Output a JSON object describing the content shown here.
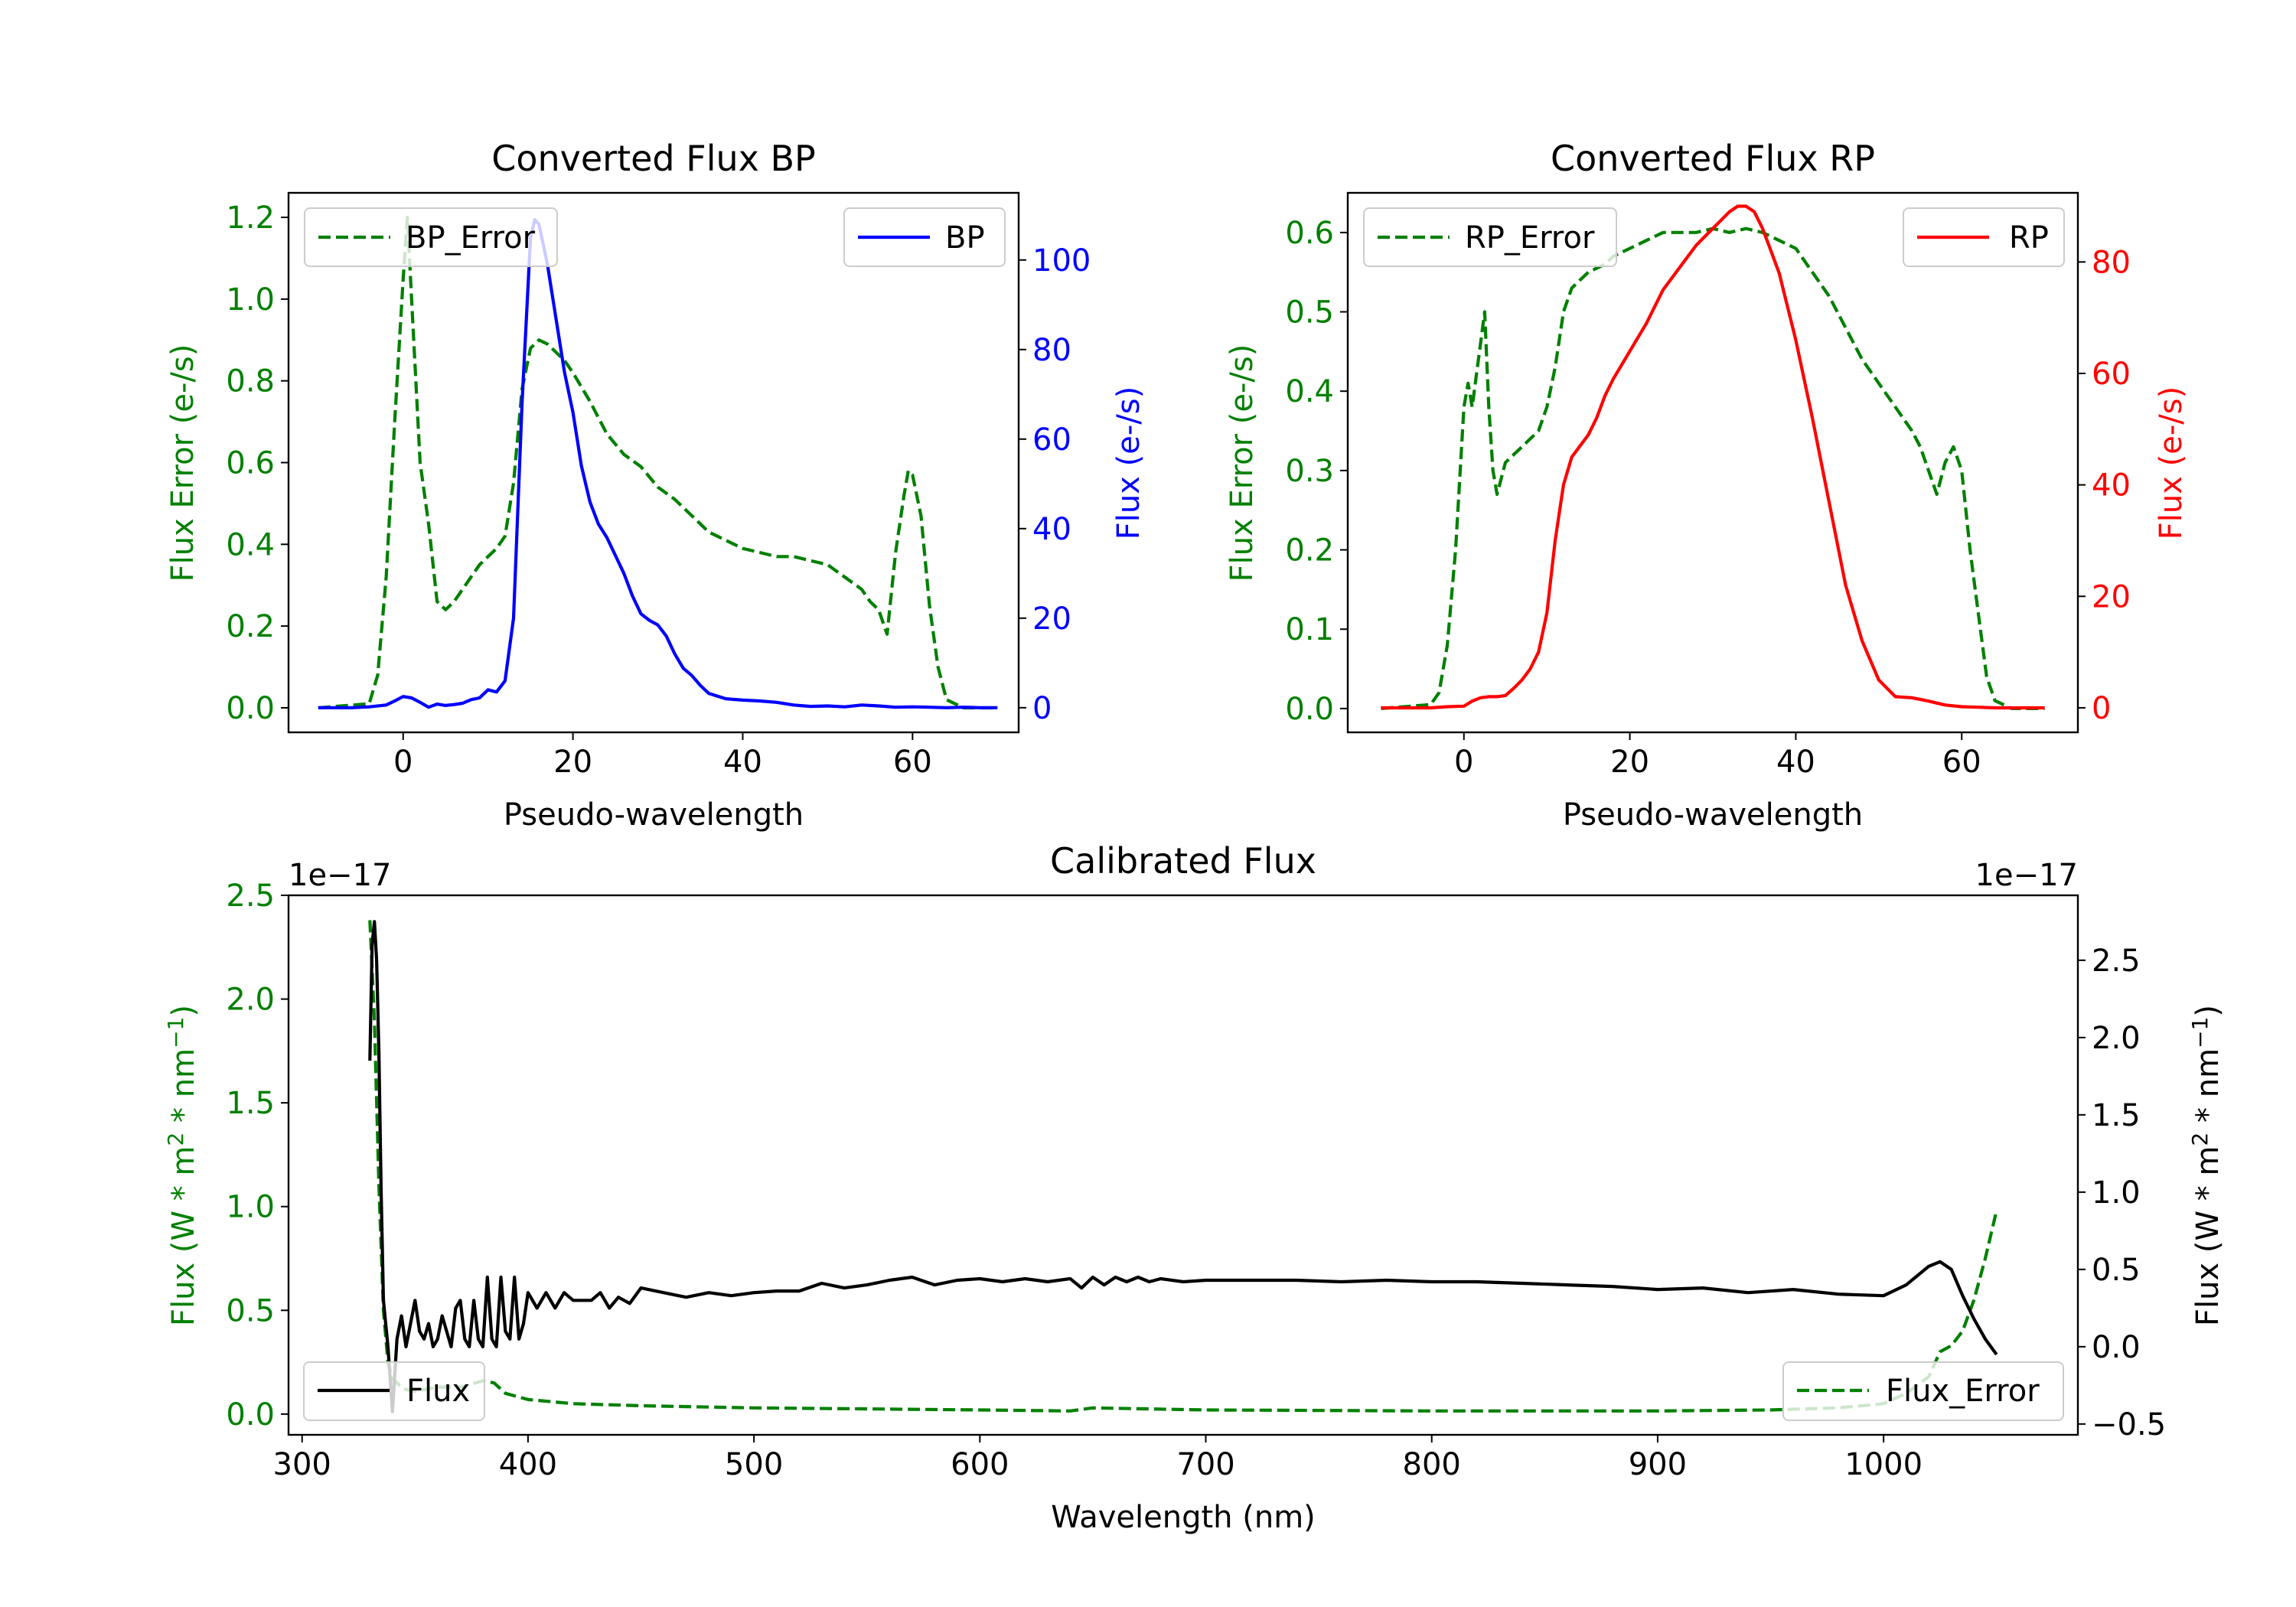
{
  "chart_data": [
    {
      "type": "line",
      "title": "Converted Flux BP",
      "xlabel": "Pseudo-wavelength",
      "xlim": [
        -13.5,
        72.5
      ],
      "xticks": [
        0,
        20,
        40,
        60
      ],
      "left_axis": {
        "label": "Flux Error (e-/s)",
        "color": "#008000",
        "ylim": [
          -0.06,
          1.26
        ],
        "ticks": [
          0.0,
          0.2,
          0.4,
          0.6,
          0.8,
          1.0,
          1.2
        ],
        "tick_labels": [
          "0.0",
          "0.2",
          "0.4",
          "0.6",
          "0.8",
          "1.0",
          "1.2"
        ]
      },
      "right_axis": {
        "label": "Flux (e-/s)",
        "color": "#0000ff",
        "ylim": [
          -5.5,
          115
        ],
        "ticks": [
          0,
          20,
          40,
          60,
          80,
          100
        ],
        "tick_labels": [
          "0",
          "20",
          "40",
          "60",
          "80",
          "100"
        ]
      },
      "legend_left": {
        "label": "BP_Error",
        "position": "upper left"
      },
      "legend_right": {
        "label": "BP",
        "position": "upper right"
      },
      "series": [
        {
          "name": "BP_Error",
          "axis": "left",
          "color": "#008000",
          "dashed": true,
          "x": [
            -10,
            -4,
            -3,
            -2,
            -1,
            0,
            0.5,
            1,
            2,
            3,
            4,
            5,
            6,
            7,
            8,
            9,
            10,
            11,
            12,
            13,
            14,
            15,
            16,
            17,
            18,
            19,
            20,
            22,
            24,
            26,
            28,
            30,
            32,
            34,
            36,
            38,
            40,
            42,
            44,
            46,
            48,
            50,
            52,
            54,
            55,
            56,
            57,
            58,
            59,
            59.5,
            60,
            61,
            62,
            63,
            64,
            66,
            68,
            70
          ],
          "y": [
            0,
            0.01,
            0.08,
            0.32,
            0.7,
            1.05,
            1.2,
            1.0,
            0.6,
            0.45,
            0.26,
            0.24,
            0.26,
            0.29,
            0.32,
            0.35,
            0.37,
            0.39,
            0.42,
            0.55,
            0.78,
            0.88,
            0.9,
            0.89,
            0.87,
            0.85,
            0.82,
            0.75,
            0.67,
            0.62,
            0.59,
            0.54,
            0.51,
            0.47,
            0.43,
            0.41,
            0.39,
            0.38,
            0.37,
            0.37,
            0.36,
            0.35,
            0.32,
            0.29,
            0.26,
            0.24,
            0.18,
            0.38,
            0.52,
            0.58,
            0.57,
            0.47,
            0.25,
            0.1,
            0.02,
            0,
            0,
            0
          ]
        },
        {
          "name": "BP",
          "axis": "right",
          "color": "#0000ff",
          "dashed": false,
          "x": [
            -10,
            -6,
            -4,
            -2,
            -1,
            0,
            1,
            2,
            3,
            4,
            5,
            6,
            7,
            8,
            9,
            10,
            11,
            12,
            13,
            14,
            15,
            15.5,
            16,
            17,
            18,
            19,
            20,
            21,
            22,
            23,
            24,
            25,
            26,
            27,
            28,
            29,
            30,
            31,
            32,
            33,
            34,
            35,
            36,
            37,
            38,
            40,
            42,
            44,
            46,
            48,
            50,
            52,
            54,
            56,
            58,
            60,
            62,
            64,
            66,
            68,
            70
          ],
          "y": [
            0,
            0,
            0.2,
            0.6,
            1.5,
            2.5,
            2.2,
            1.2,
            0.1,
            0.8,
            0.5,
            0.7,
            1,
            1.8,
            2.2,
            4,
            3.5,
            6,
            20,
            68,
            105,
            109,
            108,
            99,
            87,
            75,
            66,
            54,
            46,
            41,
            38,
            34,
            30,
            25,
            21,
            19.5,
            18.5,
            16,
            12,
            8.8,
            7.2,
            5,
            3.2,
            2.6,
            2,
            1.7,
            1.5,
            1.2,
            0.6,
            0.3,
            0.4,
            0.2,
            0.6,
            0.4,
            0.1,
            0.2,
            0.1,
            0,
            0.1,
            0,
            0
          ]
        }
      ]
    },
    {
      "type": "line",
      "title": "Converted Flux RP",
      "xlabel": "Pseudo-wavelength",
      "xlim": [
        -14,
        74
      ],
      "xticks": [
        0,
        20,
        40,
        60
      ],
      "left_axis": {
        "label": "Flux Error (e-/s)",
        "color": "#008000",
        "ylim": [
          -0.03,
          0.65
        ],
        "ticks": [
          0.0,
          0.1,
          0.2,
          0.3,
          0.4,
          0.5,
          0.6
        ],
        "tick_labels": [
          "0.0",
          "0.1",
          "0.2",
          "0.3",
          "0.4",
          "0.5",
          "0.6"
        ]
      },
      "right_axis": {
        "label": "Flux (e-/s)",
        "color": "#ff0000",
        "ylim": [
          -4.4,
          92.4
        ],
        "ticks": [
          0,
          20,
          40,
          60,
          80
        ],
        "tick_labels": [
          "0",
          "20",
          "40",
          "60",
          "80"
        ]
      },
      "legend_left": {
        "label": "RP_Error",
        "position": "upper left"
      },
      "legend_right": {
        "label": "RP",
        "position": "upper right"
      },
      "series": [
        {
          "name": "RP_Error",
          "axis": "left",
          "color": "#008000",
          "dashed": true,
          "x": [
            -10,
            -4,
            -3,
            -2,
            -1,
            0,
            0.5,
            1,
            1.5,
            2,
            2.5,
            3,
            3.5,
            4,
            5,
            6,
            7,
            8,
            9,
            10,
            11,
            12,
            13,
            14,
            15,
            16,
            17,
            18,
            19,
            20,
            22,
            24,
            26,
            28,
            30,
            32,
            34,
            36,
            38,
            40,
            42,
            44,
            46,
            48,
            50,
            52,
            54,
            55,
            56,
            57,
            58,
            59,
            60,
            61,
            62,
            63,
            64,
            66,
            70
          ],
          "y": [
            0,
            0.005,
            0.02,
            0.08,
            0.2,
            0.38,
            0.41,
            0.38,
            0.42,
            0.46,
            0.5,
            0.38,
            0.3,
            0.27,
            0.31,
            0.32,
            0.33,
            0.34,
            0.35,
            0.38,
            0.43,
            0.5,
            0.53,
            0.54,
            0.55,
            0.555,
            0.56,
            0.57,
            0.575,
            0.58,
            0.59,
            0.6,
            0.6,
            0.6,
            0.605,
            0.6,
            0.605,
            0.6,
            0.59,
            0.58,
            0.55,
            0.52,
            0.48,
            0.44,
            0.41,
            0.38,
            0.35,
            0.33,
            0.3,
            0.27,
            0.31,
            0.33,
            0.3,
            0.2,
            0.12,
            0.04,
            0.01,
            0,
            0
          ]
        },
        {
          "name": "RP",
          "axis": "right",
          "color": "#ff0000",
          "dashed": false,
          "x": [
            -10,
            -4,
            -2,
            0,
            1,
            2,
            3,
            4,
            5,
            6,
            7,
            8,
            9,
            10,
            11,
            12,
            13,
            14,
            15,
            16,
            17,
            18,
            20,
            22,
            24,
            26,
            28,
            30,
            32,
            33,
            34,
            35,
            36,
            37,
            38,
            40,
            42,
            44,
            46,
            48,
            50,
            52,
            54,
            56,
            58,
            60,
            62,
            64,
            66,
            70
          ],
          "y": [
            0,
            0,
            0.2,
            0.3,
            1.2,
            1.8,
            2,
            2,
            2.2,
            3.5,
            5,
            7,
            10,
            17,
            30,
            40,
            45,
            47,
            49,
            52,
            56,
            59,
            64,
            69,
            75,
            79,
            83,
            86,
            89,
            90,
            90,
            89,
            86,
            82,
            78,
            66,
            52,
            37,
            22,
            12,
            5,
            2,
            1.8,
            1.2,
            0.5,
            0.2,
            0.1,
            0,
            0,
            0
          ]
        }
      ]
    },
    {
      "type": "line",
      "title": "Calibrated Flux",
      "xlabel": "Wavelength (nm)",
      "xlim": [
        294,
        1086
      ],
      "xticks": [
        300,
        400,
        500,
        600,
        700,
        800,
        900,
        1000
      ],
      "left_axis": {
        "label": "Flux (W * m² * nm⁻¹)",
        "color": "#008000",
        "ylim": [
          -0.1,
          2.5
        ],
        "ticks": [
          0.0,
          0.5,
          1.0,
          1.5,
          2.0,
          2.5
        ],
        "tick_labels": [
          "0.0",
          "0.5",
          "1.0",
          "1.5",
          "2.0",
          "2.5"
        ],
        "offset_text": "1e−17"
      },
      "right_axis": {
        "label": "Flux (W * m² * nm⁻¹)",
        "color": "#000000",
        "ylim": [
          -0.57,
          2.92
        ],
        "ticks": [
          -0.5,
          0.0,
          0.5,
          1.0,
          1.5,
          2.0,
          2.5
        ],
        "tick_labels": [
          "−0.5",
          "0.0",
          "0.5",
          "1.0",
          "1.5",
          "2.0",
          "2.5"
        ],
        "offset_text": "1e−17"
      },
      "legend_left": {
        "label": "Flux",
        "position": "lower left"
      },
      "legend_right": {
        "label": "Flux_Error",
        "position": "lower right"
      },
      "series": [
        {
          "name": "Flux_Error",
          "axis": "left",
          "color": "#008000",
          "dashed": true,
          "x": [
            330,
            332,
            334,
            336,
            338,
            340,
            345,
            350,
            360,
            370,
            380,
            385,
            390,
            400,
            420,
            450,
            500,
            550,
            600,
            640,
            650,
            700,
            800,
            900,
            950,
            980,
            1000,
            1010,
            1020,
            1025,
            1030,
            1035,
            1040,
            1045,
            1050
          ],
          "y": [
            2.38,
            1.9,
            1.1,
            0.5,
            0.25,
            0.17,
            0.12,
            0.11,
            0.13,
            0.13,
            0.16,
            0.15,
            0.1,
            0.07,
            0.05,
            0.04,
            0.03,
            0.025,
            0.02,
            0.015,
            0.03,
            0.02,
            0.015,
            0.015,
            0.02,
            0.03,
            0.05,
            0.1,
            0.18,
            0.3,
            0.33,
            0.4,
            0.55,
            0.75,
            0.98
          ]
        },
        {
          "name": "Flux",
          "axis": "right",
          "color": "#000000",
          "dashed": false,
          "x": [
            330,
            331,
            332,
            333,
            334,
            335,
            336,
            338,
            340,
            342,
            344,
            346,
            348,
            350,
            352,
            354,
            356,
            358,
            360,
            362,
            364,
            366,
            368,
            370,
            372,
            374,
            376,
            378,
            380,
            382,
            384,
            386,
            388,
            390,
            392,
            394,
            396,
            398,
            400,
            404,
            408,
            412,
            416,
            420,
            424,
            428,
            432,
            436,
            440,
            445,
            450,
            460,
            470,
            480,
            490,
            500,
            510,
            520,
            530,
            540,
            550,
            560,
            570,
            580,
            590,
            600,
            610,
            620,
            630,
            640,
            645,
            650,
            655,
            660,
            665,
            670,
            675,
            680,
            690,
            700,
            720,
            740,
            760,
            780,
            800,
            820,
            840,
            860,
            880,
            900,
            920,
            940,
            960,
            980,
            1000,
            1010,
            1020,
            1025,
            1030,
            1035,
            1040,
            1045,
            1050
          ],
          "y": [
            1.85,
            2.6,
            2.75,
            2.5,
            1.9,
            1.0,
            0.3,
            0.0,
            -0.42,
            0.05,
            0.2,
            0.0,
            0.15,
            0.3,
            0.1,
            0.05,
            0.15,
            0.0,
            0.05,
            0.2,
            0.1,
            0.0,
            0.25,
            0.3,
            0.05,
            0.0,
            0.3,
            0.05,
            0.0,
            0.45,
            0.05,
            0.0,
            0.45,
            0.1,
            0.05,
            0.45,
            0.05,
            0.15,
            0.35,
            0.25,
            0.35,
            0.25,
            0.35,
            0.3,
            0.3,
            0.3,
            0.35,
            0.25,
            0.32,
            0.28,
            0.38,
            0.35,
            0.32,
            0.35,
            0.33,
            0.35,
            0.36,
            0.36,
            0.41,
            0.38,
            0.4,
            0.43,
            0.45,
            0.4,
            0.43,
            0.44,
            0.42,
            0.44,
            0.42,
            0.44,
            0.38,
            0.45,
            0.4,
            0.45,
            0.42,
            0.45,
            0.42,
            0.44,
            0.42,
            0.43,
            0.43,
            0.43,
            0.42,
            0.43,
            0.42,
            0.42,
            0.41,
            0.4,
            0.39,
            0.37,
            0.38,
            0.35,
            0.37,
            0.34,
            0.33,
            0.4,
            0.52,
            0.55,
            0.5,
            0.33,
            0.18,
            0.05,
            -0.05
          ]
        }
      ]
    }
  ]
}
